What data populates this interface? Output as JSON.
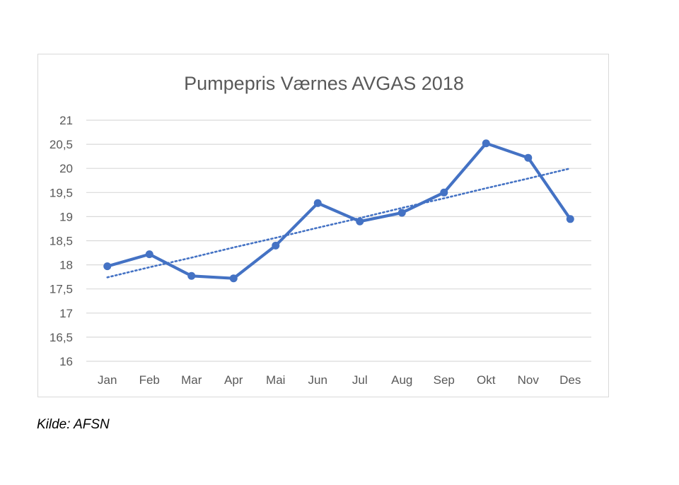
{
  "chart_data": {
    "type": "line",
    "title": "Pumpepris  Værnes AVGAS 2018",
    "xlabel": "",
    "ylabel": "",
    "categories": [
      "Jan",
      "Feb",
      "Mar",
      "Apr",
      "Mai",
      "Jun",
      "Jul",
      "Aug",
      "Sep",
      "Okt",
      "Nov",
      "Des"
    ],
    "series": [
      {
        "values": [
          17.97,
          18.22,
          17.77,
          17.72,
          18.4,
          19.28,
          18.9,
          19.08,
          19.5,
          20.52,
          20.22,
          18.95
        ],
        "color": "#4472C4",
        "style": "solid",
        "markers": true
      },
      {
        "values": [
          17.74,
          17.95,
          18.15,
          18.36,
          18.56,
          18.77,
          18.97,
          19.18,
          19.38,
          19.59,
          19.79,
          20.0
        ],
        "color": "#4472C4",
        "style": "dotted",
        "markers": false
      }
    ],
    "ylim": [
      16,
      21
    ],
    "yticks": [
      "16",
      "16,5",
      "17",
      "17,5",
      "18",
      "18,5",
      "19",
      "19,5",
      "20",
      "20,5",
      "21"
    ],
    "grid": true,
    "legend": "none"
  },
  "source": "Kilde: AFSN"
}
